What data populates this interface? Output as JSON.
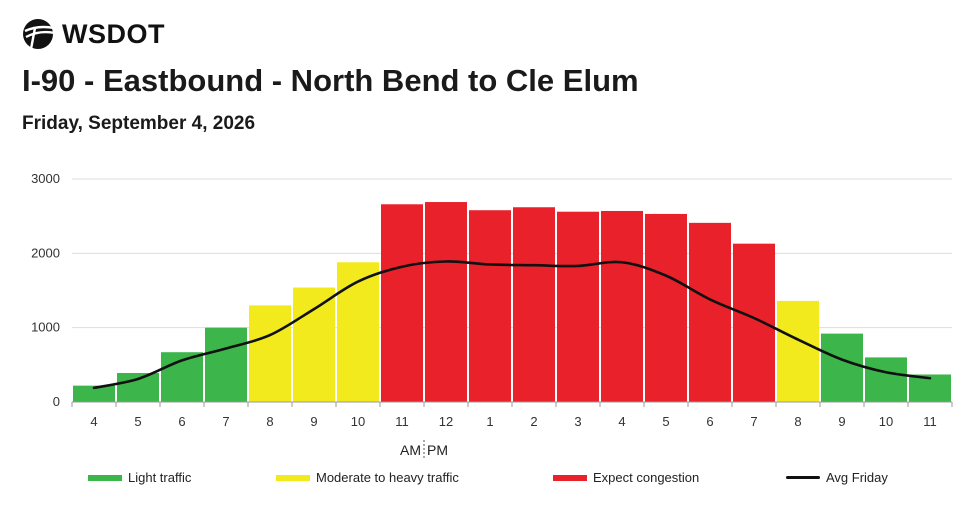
{
  "brand": {
    "name": "WSDOT",
    "logo_icon": "wsdot-logo-icon"
  },
  "header": {
    "title": "I-90 - Eastbound - North Bend to Cle Elum",
    "subtitle": "Friday, September 4, 2026"
  },
  "colors": {
    "light": "#3cb54a",
    "moderate": "#f2ea1d",
    "congestion": "#e8212b",
    "avg_line": "#111111",
    "grid": "#dddddd"
  },
  "legend": [
    {
      "label": "Light traffic",
      "kind": "light"
    },
    {
      "label": "Moderate to heavy traffic",
      "kind": "moderate"
    },
    {
      "label": "Expect congestion",
      "kind": "congestion"
    },
    {
      "label": "Avg Friday",
      "kind": "avg_line"
    }
  ],
  "chart_data": {
    "type": "bar",
    "categories": [
      "4",
      "5",
      "6",
      "7",
      "8",
      "9",
      "10",
      "11",
      "12",
      "1",
      "2",
      "3",
      "4",
      "5",
      "6",
      "7",
      "8",
      "9",
      "10",
      "11"
    ],
    "series": [
      {
        "name": "",
        "values": [
          220,
          390,
          670,
          1000,
          1300,
          1540,
          1880,
          2660,
          2690,
          2580,
          2620,
          2560,
          2570,
          2530,
          2410,
          2130,
          1360,
          920,
          600,
          370
        ],
        "levels": [
          "light",
          "light",
          "light",
          "light",
          "moderate",
          "moderate",
          "moderate",
          "congestion",
          "congestion",
          "congestion",
          "congestion",
          "congestion",
          "congestion",
          "congestion",
          "congestion",
          "congestion",
          "moderate",
          "light",
          "light",
          "light"
        ]
      },
      {
        "name": "Avg Friday",
        "type": "line",
        "values": [
          190,
          310,
          560,
          720,
          900,
          1250,
          1620,
          1820,
          1890,
          1850,
          1840,
          1830,
          1880,
          1700,
          1380,
          1130,
          840,
          570,
          400,
          320
        ]
      }
    ],
    "yticks": [
      0,
      1000,
      2000,
      3000
    ],
    "ylim": [
      0,
      3000
    ],
    "am_label": "AM",
    "pm_label": "PM",
    "grid": true,
    "legend_position": "bottom"
  }
}
